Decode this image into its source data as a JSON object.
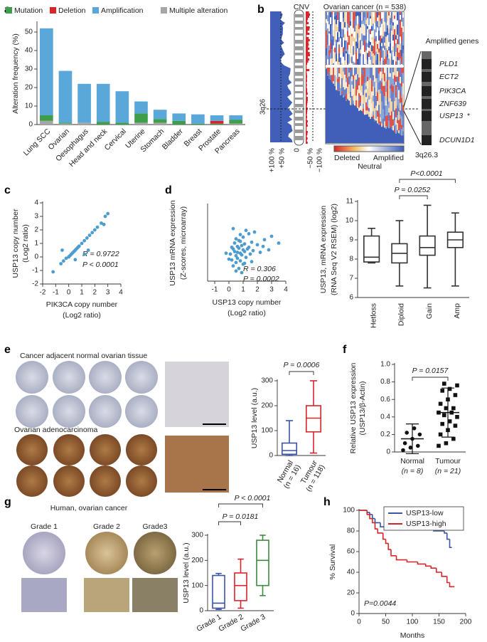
{
  "panel_labels": [
    "a",
    "b",
    "c",
    "d",
    "e",
    "f",
    "g",
    "h"
  ],
  "cnv_panel": {
    "title": "CNV",
    "cohort": "Ovarian cancer (n = 538)",
    "ticks": [
      "+100 %",
      "+50 %",
      "0",
      "−50 %",
      "−100 %"
    ],
    "region": "3q26",
    "scale": {
      "low": "Deleted",
      "mid": "Neutral",
      "high": "Amplified"
    },
    "genes_title": "Amplified genes",
    "genes": [
      {
        "name": "PLD1",
        "color": "#111111"
      },
      {
        "name": "ECT2",
        "color": "#111111"
      },
      {
        "name": "PIK3CA",
        "color": "#d7262b"
      },
      {
        "name": "ZNF639",
        "color": "#111111"
      },
      {
        "name": "USP13",
        "color": "#d7262b"
      },
      {
        "name": "DCUN1D1",
        "color": "#111111"
      }
    ],
    "marker": "*",
    "band": "3q26.3"
  },
  "tissue_panels": {
    "e": {
      "normal": "Cancer adjacent normal ovarian tissue",
      "tumour": "Ovarian adenocarcinoma"
    },
    "g": {
      "title": "Human, ovarian cancer",
      "grades": [
        "Grade 1",
        "Grade 2",
        "Grade3"
      ]
    }
  },
  "chart_data": [
    {
      "type": "bar",
      "ylabel": "Alteration frequency (%)",
      "categories": [
        "Lung SCC",
        "Ovarian",
        "Oesophagus",
        "Head and neck",
        "Cervical",
        "Uterine",
        "Stomach",
        "Bladder",
        "Breast",
        "Prostate",
        "Pancreas"
      ],
      "series": [
        {
          "name": "Mutation",
          "color": "#3f9e4a",
          "values": [
            3,
            0.5,
            0,
            1.5,
            1,
            5,
            2,
            2,
            0.5,
            0.5,
            2
          ]
        },
        {
          "name": "Deletion",
          "color": "#d7262b",
          "values": [
            0,
            0,
            0,
            0,
            0,
            0,
            0,
            0,
            0,
            1.5,
            0
          ]
        },
        {
          "name": "Amplification",
          "color": "#5aa7d9",
          "values": [
            47,
            28,
            21,
            20.5,
            17,
            6.5,
            5,
            4,
            5,
            3,
            2.5
          ]
        },
        {
          "name": "Multiple alteration",
          "color": "#a6a6a6",
          "values": [
            2,
            0.5,
            1,
            0,
            0,
            1,
            1,
            0,
            0,
            0,
            0.5
          ]
        }
      ],
      "ylim": [
        0,
        55
      ],
      "yticks": [
        0,
        10,
        20,
        30,
        40,
        50
      ]
    },
    {
      "type": "scatter",
      "color": "#4d9ccc",
      "x": [
        -1.2,
        -0.6,
        -0.4,
        -0.2,
        0,
        0.1,
        0.2,
        0.3,
        0.4,
        0.5,
        0.6,
        0.7,
        0.8,
        1,
        1.2,
        1.4,
        1.6,
        1.8,
        2,
        2.2,
        2.5,
        2.8,
        3,
        0.5,
        -0.5,
        1.2,
        1.5,
        2.7
      ],
      "values": [
        -1.1,
        -0.5,
        -0.3,
        -0.1,
        0,
        0.1,
        0.2,
        0.3,
        0.4,
        0.5,
        0.6,
        0.7,
        0.8,
        1,
        1.2,
        1.4,
        1.6,
        1.8,
        2,
        2.2,
        2.5,
        3,
        3.2,
        -0.2,
        0.5,
        0.2,
        0.5,
        2.4
      ],
      "xlim": [
        -2,
        4
      ],
      "xticks": [
        -2,
        -1,
        0,
        1,
        2,
        3,
        4
      ],
      "ylim": [
        -2,
        4
      ],
      "yticks": [
        -2,
        -1,
        0,
        1,
        2,
        3,
        4
      ],
      "xlabel": [
        "PIK3CA copy number",
        "(Log2 ratio)"
      ],
      "ylabel": [
        "USP13 copy number",
        "(Log2 ratio)"
      ],
      "annotations": [
        "R = 0.9722",
        "P < 0.0001"
      ]
    },
    {
      "type": "scatter",
      "color": "#4d9ccc",
      "x": [
        0.1,
        0.2,
        0.3,
        0.3,
        0.4,
        0.4,
        0.5,
        0.5,
        0.5,
        0.6,
        0.6,
        0.6,
        0.7,
        0.7,
        0.7,
        0.8,
        0.8,
        0.8,
        0.9,
        0.9,
        1.0,
        1.0,
        1.0,
        1.1,
        1.1,
        1.2,
        1.2,
        1.3,
        1.4,
        1.5,
        1.6,
        1.7,
        1.8,
        2.0,
        2.2,
        2.5,
        2.8,
        3.0,
        0.2,
        0.5,
        0.8,
        1.1,
        1.4,
        -0.2,
        0.0,
        0.3,
        0.9,
        1.6,
        2.4,
        3.5
      ],
      "values": [
        0.2,
        -0.5,
        0.8,
        -1.2,
        0.5,
        1.5,
        0.0,
        -0.8,
        2.0,
        0.4,
        1.1,
        -0.3,
        0.9,
        -1.5,
        1.8,
        0.3,
        2.5,
        -0.6,
        1.2,
        0.1,
        0.7,
        -1.0,
        2.2,
        0.5,
        1.4,
        -0.2,
        3.0,
        0.8,
        1.0,
        0.2,
        1.6,
        0.6,
        2.8,
        1.3,
        0.4,
        1.9,
        0.7,
        2.3,
        1.0,
        -1.8,
        1.7,
        -0.9,
        2.6,
        0.3,
        -0.4,
        3.2,
        -2.0,
        -0.7,
        1.1,
        1.5
      ],
      "xlim": [
        -1.5,
        4
      ],
      "xticks": [
        -1,
        0,
        1,
        2,
        3,
        4
      ],
      "ylim": [
        -3,
        6
      ],
      "xlabel": [
        "USP13 copy number",
        "(Log2 ratio)"
      ],
      "ylabel": [
        "USP13 mRNA expression",
        "(Z-scores, microarray)"
      ],
      "annotations": [
        "R = 0.306",
        "P = 0.0002"
      ]
    },
    {
      "type": "box",
      "categories": [
        "Hetloss",
        "Diploid",
        "Gain",
        "Amp"
      ],
      "boxes": [
        {
          "color": "#333333",
          "min": 7.8,
          "q1": 7.85,
          "median": 8.1,
          "q3": 9.2,
          "max": 9.6
        },
        {
          "color": "#333333",
          "min": 6.6,
          "q1": 7.8,
          "median": 8.3,
          "q3": 8.8,
          "max": 10.0
        },
        {
          "color": "#333333",
          "min": 6.5,
          "q1": 8.2,
          "median": 8.6,
          "q3": 9.2,
          "max": 10.8
        },
        {
          "color": "#333333",
          "min": 6.6,
          "q1": 8.6,
          "median": 9.0,
          "q3": 9.4,
          "max": 10.4
        }
      ],
      "ylim": [
        6,
        11
      ],
      "yticks": [
        6,
        7,
        8,
        9,
        10,
        11
      ],
      "ylabel": [
        "USP13, mRNA expression",
        "(RNA Seq V2 RSEM) (log2)"
      ],
      "annotations": [
        "P<0.0001",
        "P = 0.0252"
      ]
    },
    {
      "type": "box",
      "categories": [
        "Normal",
        "Tumour"
      ],
      "category_notes": [
        "(n = 16)",
        "(n = 118)"
      ],
      "boxes": [
        {
          "color": "#3a55a4",
          "min": 0,
          "q1": 5,
          "median": 20,
          "q3": 50,
          "max": 140
        },
        {
          "color": "#d7262b",
          "min": 10,
          "q1": 95,
          "median": 150,
          "q3": 200,
          "max": 300
        }
      ],
      "ylim": [
        0,
        300
      ],
      "yticks": [
        0,
        100,
        200,
        300
      ],
      "ylabel": "USP13 level (a.u.)",
      "annotations": [
        "P = 0.0006"
      ]
    },
    {
      "type": "dot",
      "categories": [
        "Normal",
        "Tumour"
      ],
      "category_notes": [
        "(n = 8)",
        "(n = 21)"
      ],
      "color": "#111111",
      "values": [
        [
          0.02,
          0.05,
          0.07,
          0.1,
          0.15,
          0.2,
          0.22,
          0.27
        ],
        [
          0.07,
          0.1,
          0.15,
          0.2,
          0.25,
          0.3,
          0.32,
          0.35,
          0.4,
          0.42,
          0.45,
          0.45,
          0.5,
          0.5,
          0.55,
          0.6,
          0.65,
          0.7,
          0.72,
          0.76,
          0.78
        ]
      ],
      "mean": [
        0.15,
        0.45
      ],
      "sd": [
        0.17,
        0.28
      ],
      "ylim": [
        0,
        1
      ],
      "yticks": [
        0,
        0.2,
        0.4,
        0.6,
        0.8,
        {
          "value": 1,
          "label": "1.0"
        }
      ],
      "ylabel": [
        "Relative USP13 expression",
        "(USP13/β-Actin)"
      ],
      "annotations": [
        "P = 0.0157"
      ]
    },
    {
      "type": "box",
      "categories": [
        "Grade 1",
        "Grade 2",
        "Grade 3"
      ],
      "boxes": [
        {
          "color": "#3a55a4",
          "min": 5,
          "q1": 10,
          "median": 30,
          "q3": 140,
          "max": 148
        },
        {
          "color": "#d7262b",
          "min": 10,
          "q1": 40,
          "median": 100,
          "q3": 150,
          "max": 205
        },
        {
          "color": "#3f8a3f",
          "min": 60,
          "q1": 100,
          "median": 200,
          "q3": 280,
          "max": 300
        }
      ],
      "ylim": [
        0,
        300
      ],
      "yticks": [
        0,
        100,
        200,
        300
      ],
      "ylabel": "USP13 level (a.u.)",
      "annotations": [
        "P < 0.0001",
        "P = 0.0181"
      ]
    },
    {
      "type": "line",
      "series": [
        {
          "name": "USP13-low",
          "color": "#3a55a4",
          "x": [
            0,
            15,
            20,
            25,
            30,
            40,
            60,
            80,
            100,
            140,
            160,
            165,
            170
          ],
          "values": [
            100,
            98,
            96,
            92,
            88,
            84,
            82,
            82,
            82,
            80,
            78,
            72,
            64
          ]
        },
        {
          "name": "USP13-high",
          "color": "#d7262b",
          "x": [
            0,
            15,
            20,
            25,
            30,
            35,
            45,
            50,
            55,
            60,
            70,
            90,
            110,
            125,
            135,
            145,
            155,
            165,
            170,
            175
          ],
          "values": [
            100,
            96,
            92,
            88,
            82,
            78,
            72,
            68,
            62,
            56,
            52,
            50,
            48,
            46,
            44,
            40,
            36,
            30,
            26,
            26
          ]
        }
      ],
      "xlim": [
        0,
        200
      ],
      "xticks": [
        0,
        50,
        100,
        150,
        200
      ],
      "ylim": [
        0,
        100
      ],
      "yticks": [
        0,
        20,
        40,
        60,
        80,
        100
      ],
      "xlabel": "Months",
      "ylabel": "% Survival",
      "annotations": [
        "P=0.0044"
      ]
    }
  ]
}
